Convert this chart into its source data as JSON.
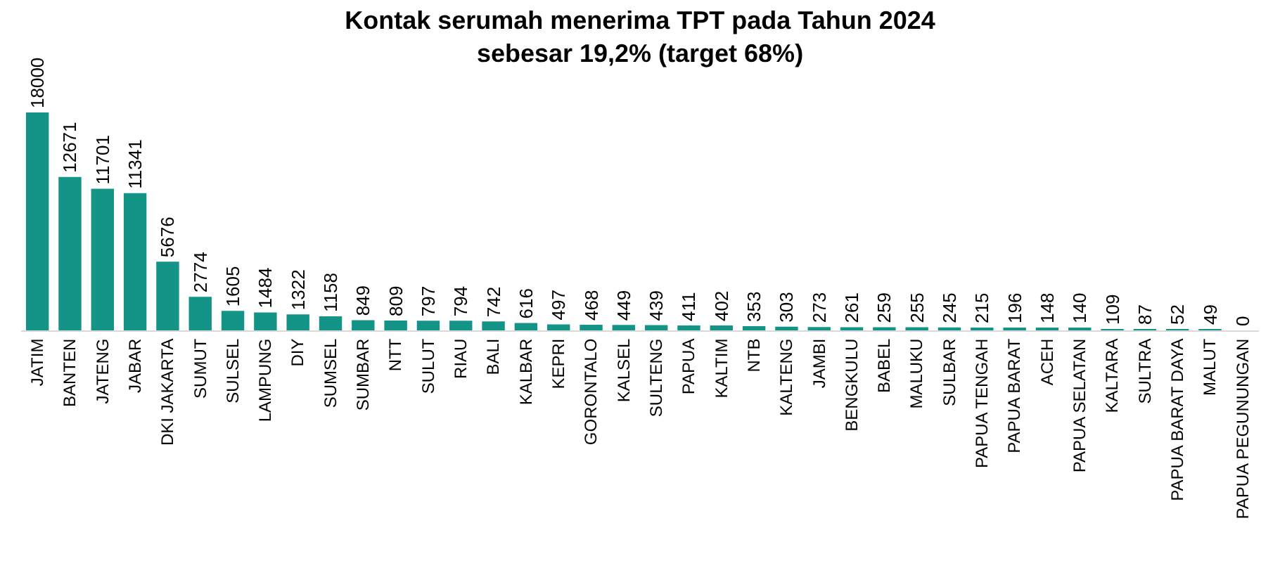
{
  "chart_data": {
    "type": "bar",
    "title": "Kontak serumah menerima TPT pada Tahun 2024\nsebesar 19,2% (target 68%)",
    "categories": [
      "JATIM",
      "BANTEN",
      "JATENG",
      "JABAR",
      "DKI JAKARTA",
      "SUMUT",
      "SULSEL",
      "LAMPUNG",
      "DIY",
      "SUMSEL",
      "SUMBAR",
      "NTT",
      "SULUT",
      "RIAU",
      "BALI",
      "KALBAR",
      "KEPRI",
      "GORONTALO",
      "KALSEL",
      "SULTENG",
      "PAPUA",
      "KALTIM",
      "NTB",
      "KALTENG",
      "JAMBI",
      "BENGKULU",
      "BABEL",
      "MALUKU",
      "SULBAR",
      "PAPUA TENGAH",
      "PAPUA BARAT",
      "ACEH",
      "PAPUA SELATAN",
      "KALTARA",
      "SULTRA",
      "PAPUA BARAT DAYA",
      "MALUT",
      "PAPUA PEGUNUNGAN"
    ],
    "values": [
      18000,
      12671,
      11701,
      11341,
      5676,
      2774,
      1605,
      1484,
      1322,
      1158,
      849,
      809,
      797,
      794,
      742,
      616,
      497,
      468,
      449,
      439,
      411,
      402,
      353,
      303,
      273,
      261,
      259,
      255,
      245,
      215,
      196,
      148,
      140,
      109,
      87,
      52,
      49,
      0
    ],
    "color": "#139486",
    "data_labels": true,
    "legend": false
  }
}
